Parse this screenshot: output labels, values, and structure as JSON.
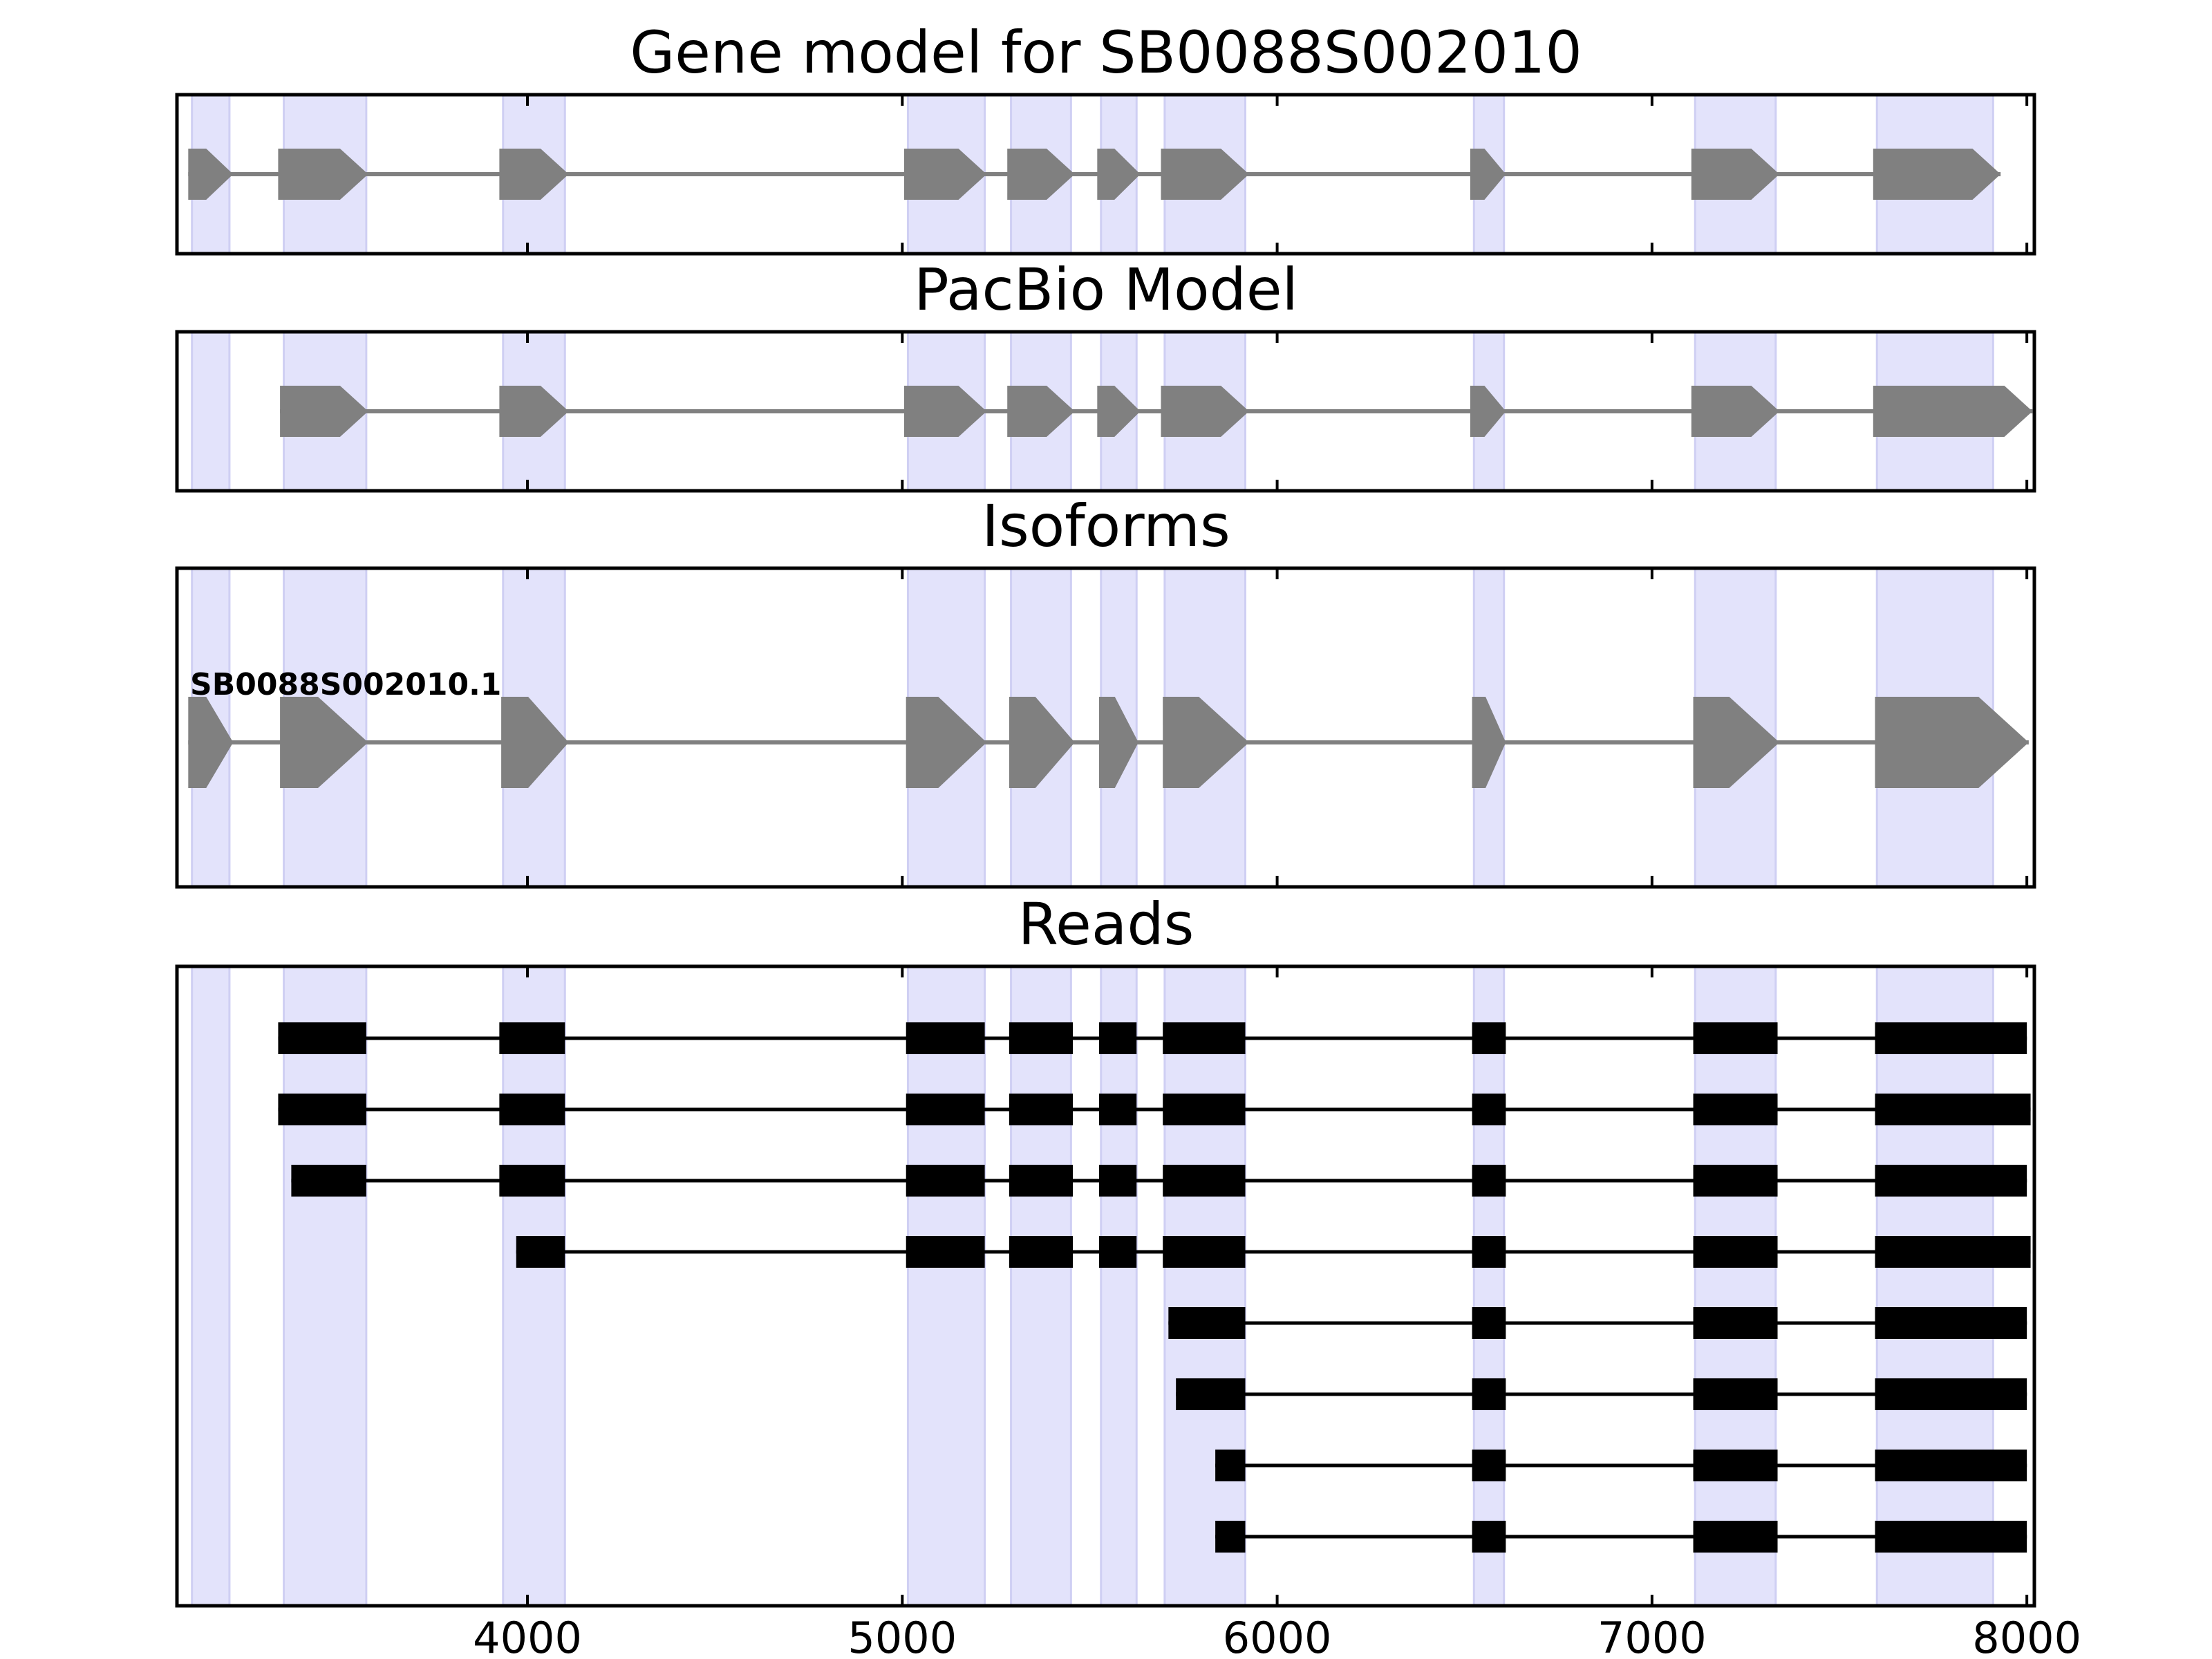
{
  "chart_data": {
    "type": "gene-structure",
    "xlim": [
      3065,
      8020
    ],
    "xticks": [
      4000,
      5000,
      6000,
      7000,
      8000
    ],
    "exon_shading": [
      [
        3105,
        3205
      ],
      [
        3350,
        3570
      ],
      [
        3935,
        4100
      ],
      [
        5015,
        5220
      ],
      [
        5290,
        5450
      ],
      [
        5530,
        5625
      ],
      [
        5700,
        5915
      ],
      [
        6525,
        6605
      ],
      [
        7115,
        7330
      ],
      [
        7600,
        7910
      ]
    ],
    "panels": [
      {
        "title": "Gene model for SB0088S002010",
        "exons": [
          [
            3095,
            3215
          ],
          [
            3335,
            3575
          ],
          [
            3925,
            4110
          ],
          [
            5005,
            5225
          ],
          [
            5280,
            5460
          ],
          [
            5520,
            5635
          ],
          [
            5690,
            5925
          ],
          [
            6515,
            6610
          ],
          [
            7105,
            7340
          ],
          [
            7590,
            7930
          ]
        ]
      },
      {
        "title": "PacBio Model",
        "exons": [
          [
            3340,
            3575
          ],
          [
            3925,
            4110
          ],
          [
            5005,
            5225
          ],
          [
            5280,
            5460
          ],
          [
            5520,
            5635
          ],
          [
            5690,
            5925
          ],
          [
            6515,
            6610
          ],
          [
            7105,
            7340
          ],
          [
            7590,
            8015
          ]
        ]
      },
      {
        "title": "Isoforms",
        "isoform_label": "SB0088S002010.1",
        "exons": [
          [
            3095,
            3215
          ],
          [
            3340,
            3575
          ],
          [
            3930,
            4110
          ],
          [
            5010,
            5225
          ],
          [
            5285,
            5460
          ],
          [
            5525,
            5630
          ],
          [
            5695,
            5925
          ],
          [
            6520,
            6610
          ],
          [
            7110,
            7340
          ],
          [
            7595,
            8005
          ]
        ]
      },
      {
        "title": "Reads",
        "reads": [
          [
            [
              3335,
              3570
            ],
            [
              3925,
              4100
            ],
            [
              5010,
              5220
            ],
            [
              5285,
              5455
            ],
            [
              5525,
              5625
            ],
            [
              5695,
              5915
            ],
            [
              6520,
              6610
            ],
            [
              7110,
              7335
            ],
            [
              7595,
              8000
            ]
          ],
          [
            [
              3335,
              3570
            ],
            [
              3925,
              4100
            ],
            [
              5010,
              5220
            ],
            [
              5285,
              5455
            ],
            [
              5525,
              5625
            ],
            [
              5695,
              5915
            ],
            [
              6520,
              6610
            ],
            [
              7110,
              7335
            ],
            [
              7595,
              8010
            ]
          ],
          [
            [
              3370,
              3570
            ],
            [
              3925,
              4100
            ],
            [
              5010,
              5220
            ],
            [
              5285,
              5455
            ],
            [
              5525,
              5625
            ],
            [
              5695,
              5915
            ],
            [
              6520,
              6610
            ],
            [
              7110,
              7335
            ],
            [
              7595,
              8000
            ]
          ],
          [
            [
              3970,
              4100
            ],
            [
              5010,
              5220
            ],
            [
              5285,
              5455
            ],
            [
              5525,
              5625
            ],
            [
              5695,
              5915
            ],
            [
              6520,
              6610
            ],
            [
              7110,
              7335
            ],
            [
              7595,
              8010
            ]
          ],
          [
            [
              5710,
              5915
            ],
            [
              6520,
              6610
            ],
            [
              7110,
              7335
            ],
            [
              7595,
              8000
            ]
          ],
          [
            [
              5730,
              5915
            ],
            [
              6520,
              6610
            ],
            [
              7110,
              7335
            ],
            [
              7595,
              8000
            ]
          ],
          [
            [
              5835,
              5915
            ],
            [
              6520,
              6610
            ],
            [
              7110,
              7335
            ],
            [
              7595,
              8000
            ]
          ],
          [
            [
              5835,
              5915
            ],
            [
              6520,
              6610
            ],
            [
              7110,
              7335
            ],
            [
              7595,
              8000
            ]
          ]
        ]
      }
    ],
    "colors": {
      "shading": "#e3e3fb",
      "shading_edge": "#cfcff3",
      "model": "#808080",
      "read": "#000000"
    }
  }
}
